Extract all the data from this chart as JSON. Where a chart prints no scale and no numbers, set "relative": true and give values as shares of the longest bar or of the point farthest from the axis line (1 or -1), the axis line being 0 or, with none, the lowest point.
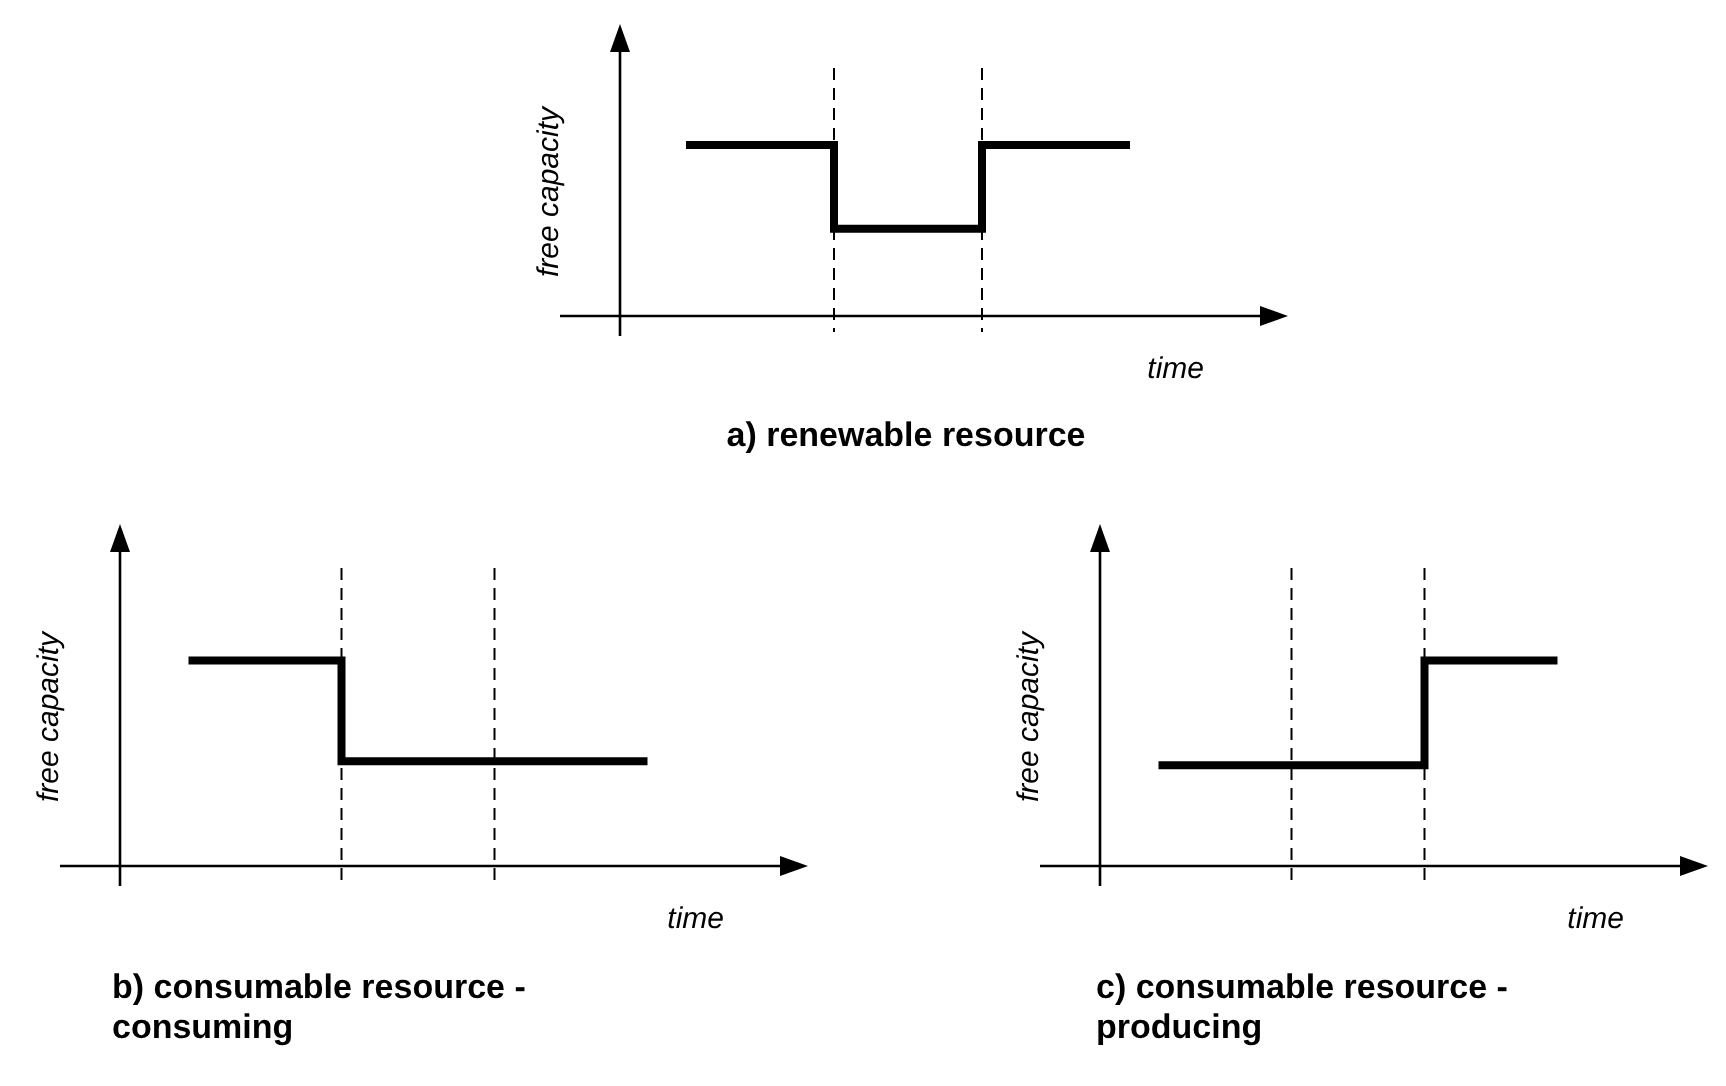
{
  "chart_data": [
    {
      "type": "step",
      "title": "a) renewable resource",
      "xlabel": "time",
      "ylabel": "free capacity",
      "relative": true,
      "categories": [
        null,
        null,
        null,
        null
      ],
      "series": [
        {
          "color": "#000000",
          "values": [
            1,
            0.51,
            1,
            1
          ]
        }
      ],
      "grid": false,
      "legend": false,
      "tick_labels": false
    },
    {
      "type": "step",
      "title": "b) consumable resource - consuming",
      "xlabel": "time",
      "ylabel": "free capacity",
      "relative": true,
      "categories": [
        null,
        null,
        null,
        null
      ],
      "series": [
        {
          "color": "#000000",
          "values": [
            1,
            0.51,
            0.51,
            0.51
          ]
        }
      ],
      "grid": false,
      "legend": false,
      "tick_labels": false
    },
    {
      "type": "step",
      "title": "c) consumable resource - producing",
      "xlabel": "time",
      "ylabel": "free capacity",
      "relative": true,
      "categories": [
        null,
        null,
        null,
        null
      ],
      "series": [
        {
          "color": "#000000",
          "values": [
            0.49,
            0.49,
            1,
            1
          ]
        }
      ],
      "grid": false,
      "legend": false,
      "tick_labels": false
    }
  ]
}
